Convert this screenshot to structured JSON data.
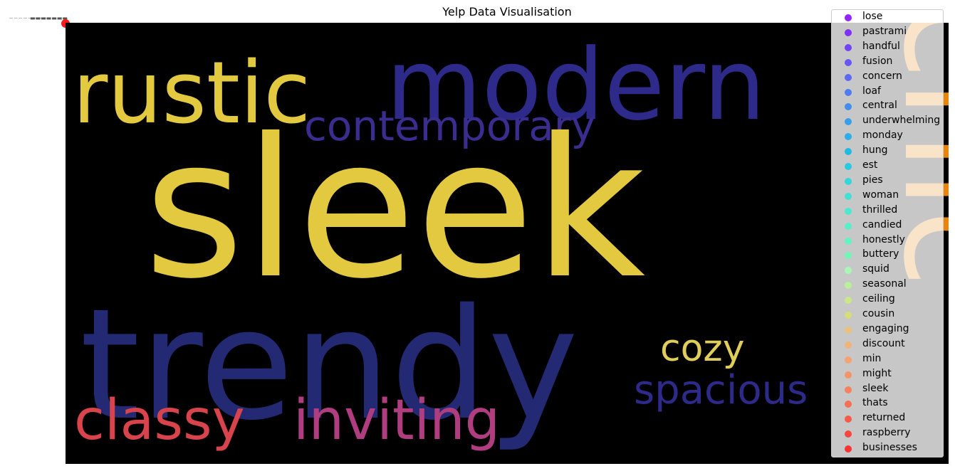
{
  "chart_data": {
    "type": "scatter",
    "title": "Yelp Data Visualisation",
    "xlabel": "",
    "ylabel": "",
    "grid": false,
    "legend_position": "upper-right",
    "background_image": {
      "kind": "word-cloud",
      "background_color": "#000000",
      "words": [
        {
          "text": "rustic",
          "color": "#e3c93f"
        },
        {
          "text": "modern",
          "color": "#2d2a8a"
        },
        {
          "text": "contemporary",
          "color": "#3b2d8f"
        },
        {
          "text": "sleek",
          "color": "#e3c93f"
        },
        {
          "text": "trendy",
          "color": "#232a73"
        },
        {
          "text": "cozy",
          "color": "#e0cd5a"
        },
        {
          "text": "spacious",
          "color": "#2d2a8a"
        },
        {
          "text": "classy",
          "color": "#d9434b"
        },
        {
          "text": "inviting",
          "color": "#b03d7f"
        },
        {
          "text": "chic",
          "color": "#e8840a"
        }
      ]
    },
    "series": [
      {
        "name": "lose",
        "color": "#8000ff"
      },
      {
        "name": "pastrami",
        "color": "#7216ff"
      },
      {
        "name": "handful",
        "color": "#642dff"
      },
      {
        "name": "fusion",
        "color": "#5643fe"
      },
      {
        "name": "concern",
        "color": "#4859fc"
      },
      {
        "name": "loaf",
        "color": "#3a6efa"
      },
      {
        "name": "central",
        "color": "#2c82f6"
      },
      {
        "name": "underwhelming",
        "color": "#1e96f2"
      },
      {
        "name": "monday",
        "color": "#10a8ee"
      },
      {
        "name": "hung",
        "color": "#02b9e8"
      },
      {
        "name": "est",
        "color": "#0ccae3"
      },
      {
        "name": "pies",
        "color": "#1ad8dc"
      },
      {
        "name": "woman",
        "color": "#28e4d6"
      },
      {
        "name": "thrilled",
        "color": "#36eecf"
      },
      {
        "name": "candied",
        "color": "#44f6c7"
      },
      {
        "name": "honestly",
        "color": "#52fbbf"
      },
      {
        "name": "buttery",
        "color": "#60feb6"
      },
      {
        "name": "squid",
        "color": "#a5feb0"
      },
      {
        "name": "seasonal",
        "color": "#b6f78f"
      },
      {
        "name": "ceiling",
        "color": "#c8ee7a"
      },
      {
        "name": "cousin",
        "color": "#d8e366"
      },
      {
        "name": "engaging",
        "color": "#f0c070"
      },
      {
        "name": "discount",
        "color": "#f6b068"
      },
      {
        "name": "min",
        "color": "#fa9c5f"
      },
      {
        "name": "might",
        "color": "#fe8a55"
      },
      {
        "name": "sleek",
        "color": "#ff744a"
      },
      {
        "name": "thats",
        "color": "#ff5e3f"
      },
      {
        "name": "returned",
        "color": "#ff4633"
      },
      {
        "name": "raspberry",
        "color": "#ff2e27"
      },
      {
        "name": "businesses",
        "color": "#ff1a1a"
      }
    ]
  }
}
